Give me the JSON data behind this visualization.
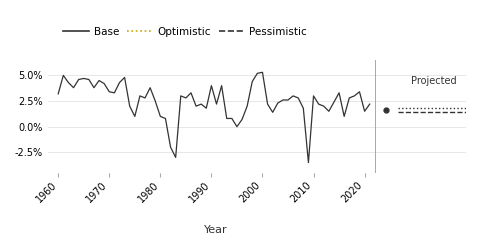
{
  "xlabel": "Year",
  "legend_entries": [
    "Base",
    "Optimistic",
    "Pessimistic"
  ],
  "legend_colors": [
    "#333333",
    "#c8a800",
    "#333333"
  ],
  "legend_styles": [
    "-",
    ":",
    "--"
  ],
  "projected_label": "Projected",
  "optimistic_value": 0.018,
  "pessimistic_value": 0.014,
  "dot_value": 0.016,
  "yticks": [
    -0.025,
    0.0,
    0.025,
    0.05
  ],
  "ytick_labels": [
    "-2.5%",
    "0.0%",
    "2.5%",
    "5.0%"
  ],
  "xticks": [
    1960,
    1970,
    1980,
    1990,
    2000,
    2010,
    2020
  ],
  "xlim": [
    1958,
    2022
  ],
  "ylim": [
    -0.045,
    0.065
  ],
  "background_color": "#ffffff",
  "line_color": "#333333",
  "divider_color": "#999999",
  "grid_color": "#dddddd",
  "historical_data": {
    "years": [
      1960,
      1961,
      1962,
      1963,
      1964,
      1965,
      1966,
      1967,
      1968,
      1969,
      1970,
      1971,
      1972,
      1973,
      1974,
      1975,
      1976,
      1977,
      1978,
      1979,
      1980,
      1981,
      1982,
      1983,
      1984,
      1985,
      1986,
      1987,
      1988,
      1989,
      1990,
      1991,
      1992,
      1993,
      1994,
      1995,
      1996,
      1997,
      1998,
      1999,
      2000,
      2001,
      2002,
      2003,
      2004,
      2005,
      2006,
      2007,
      2008,
      2009,
      2010,
      2011,
      2012,
      2013,
      2014,
      2015,
      2016,
      2017,
      2018,
      2019,
      2020,
      2021
    ],
    "values": [
      0.032,
      0.05,
      0.043,
      0.038,
      0.046,
      0.047,
      0.046,
      0.038,
      0.045,
      0.042,
      0.034,
      0.033,
      0.043,
      0.048,
      0.02,
      0.01,
      0.03,
      0.028,
      0.038,
      0.025,
      0.01,
      0.008,
      -0.02,
      -0.03,
      0.03,
      0.028,
      0.033,
      0.02,
      0.022,
      0.018,
      0.04,
      0.022,
      0.04,
      0.008,
      0.008,
      0.0,
      0.007,
      0.02,
      0.044,
      0.052,
      0.053,
      0.022,
      0.014,
      0.023,
      0.026,
      0.026,
      0.03,
      0.028,
      0.018,
      -0.035,
      0.03,
      0.022,
      0.02,
      0.015,
      0.024,
      0.033,
      0.01,
      0.028,
      0.03,
      0.034,
      0.015,
      0.022
    ]
  }
}
